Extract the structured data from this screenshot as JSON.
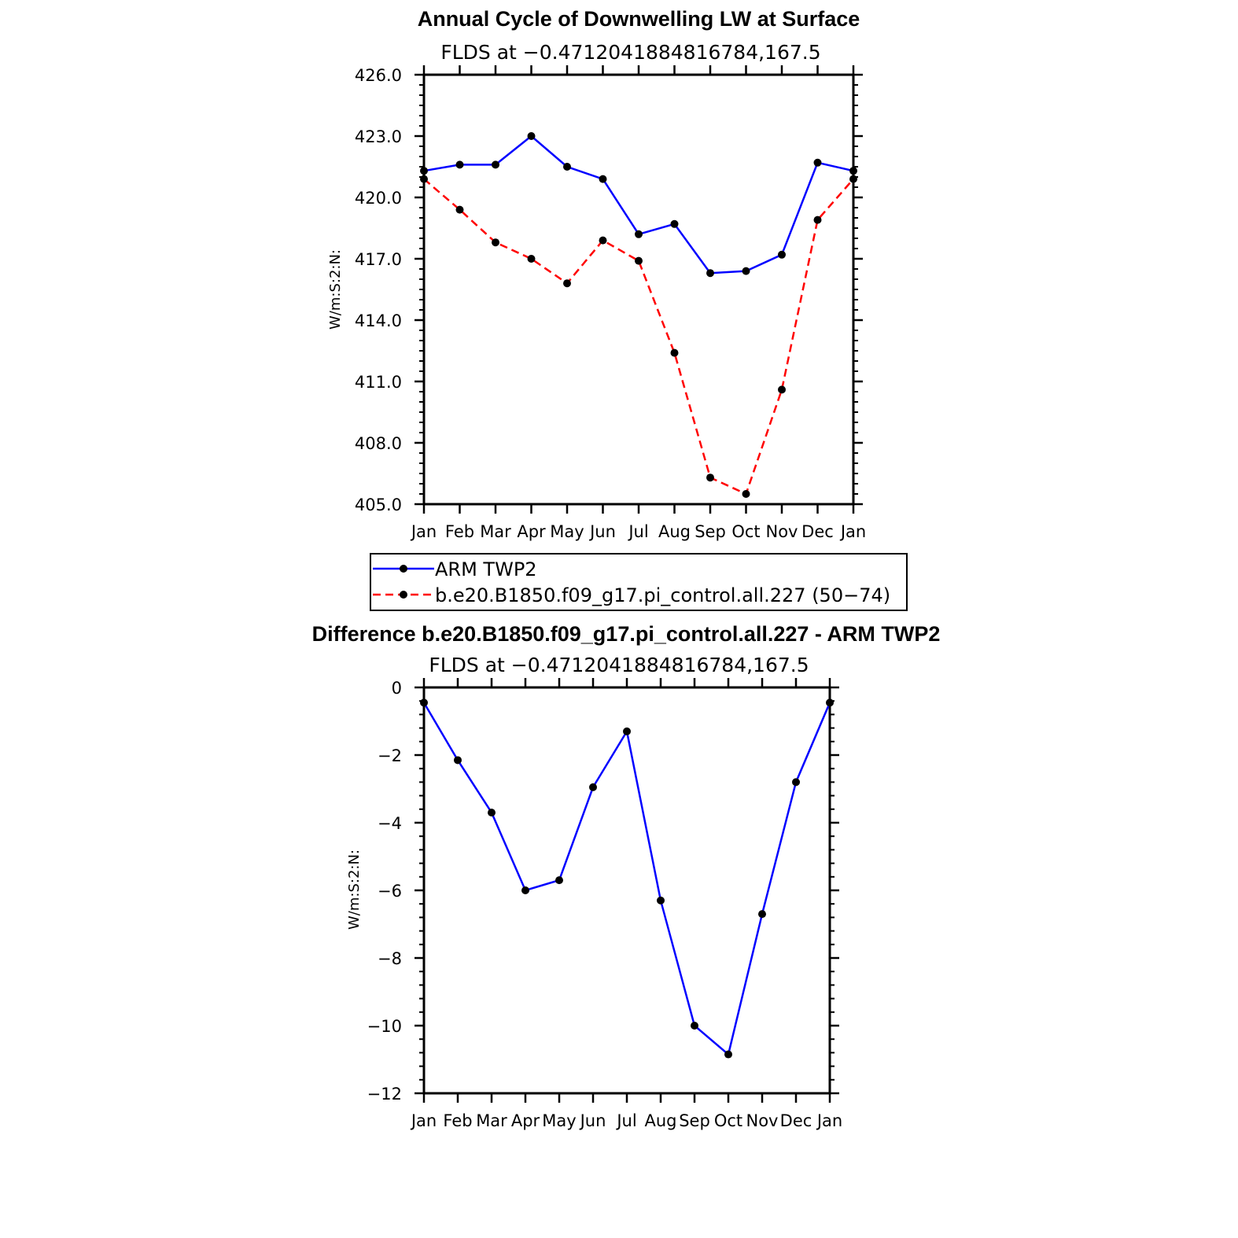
{
  "chart_data": [
    {
      "type": "line",
      "title": "Annual Cycle of Downwelling LW at Surface",
      "subtitle": "FLDS at −0.4712041884816784,167.5",
      "ylabel": "W/m:S:2:N:",
      "xlabel": "",
      "categories": [
        "Jan",
        "Feb",
        "Mar",
        "Apr",
        "May",
        "Jun",
        "Jul",
        "Aug",
        "Sep",
        "Oct",
        "Nov",
        "Dec",
        "Jan"
      ],
      "ylim": [
        405.0,
        426.0
      ],
      "yticks": [
        405.0,
        408.0,
        411.0,
        414.0,
        417.0,
        420.0,
        423.0,
        426.0
      ],
      "ytick_labels": [
        "405.0",
        "408.0",
        "411.0",
        "414.0",
        "417.0",
        "420.0",
        "423.0",
        "426.0"
      ],
      "grid": false,
      "legend_placement": "bottom",
      "series": [
        {
          "name": "ARM TWP2",
          "color": "#0000ff",
          "dash": "solid",
          "values": [
            421.3,
            421.6,
            421.6,
            423.0,
            421.5,
            420.9,
            418.2,
            418.7,
            416.3,
            416.4,
            417.2,
            421.7,
            421.3
          ]
        },
        {
          "name": "b.e20.B1850.f09_g17.pi_control.all.227 (50−74)",
          "color": "#ff0000",
          "dash": "dashed",
          "values": [
            420.9,
            419.4,
            417.8,
            417.0,
            415.8,
            417.9,
            416.9,
            412.4,
            406.3,
            405.5,
            410.6,
            418.9,
            420.9
          ]
        }
      ]
    },
    {
      "type": "line",
      "title": "Difference b.e20.B1850.f09_g17.pi_control.all.227 - ARM TWP2",
      "subtitle": "FLDS at −0.4712041884816784,167.5",
      "ylabel": "W/m:S:2:N:",
      "xlabel": "",
      "categories": [
        "Jan",
        "Feb",
        "Mar",
        "Apr",
        "May",
        "Jun",
        "Jul",
        "Aug",
        "Sep",
        "Oct",
        "Nov",
        "Dec",
        "Jan"
      ],
      "ylim": [
        -12,
        0
      ],
      "yticks": [
        -12,
        -10,
        -8,
        -6,
        -4,
        -2,
        0
      ],
      "ytick_labels": [
        "−12",
        "−10",
        "−8",
        "−6",
        "−4",
        "−2",
        "0"
      ],
      "grid": false,
      "series": [
        {
          "color": "#0000ff",
          "dash": "solid",
          "values": [
            -0.45,
            -2.15,
            -3.7,
            -6.0,
            -5.7,
            -2.95,
            -1.3,
            -6.3,
            -10.0,
            -10.85,
            -6.7,
            -2.8,
            -0.45
          ]
        }
      ]
    }
  ]
}
